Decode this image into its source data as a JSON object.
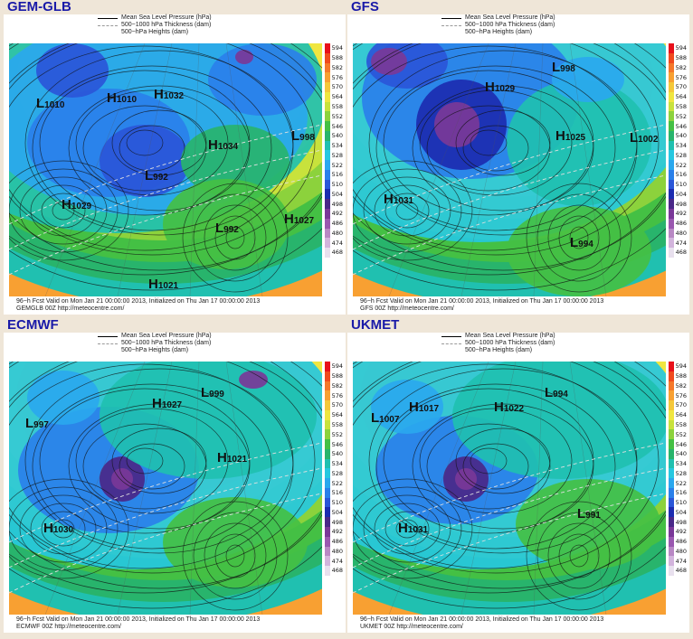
{
  "legend": {
    "mslp": "Mean Sea Level Pressure (hPa)",
    "thickness": "500−1000 hPa Thickness (dam)",
    "heights": "500−hPa Heights (dam)"
  },
  "scale": {
    "levels": [
      "594",
      "588",
      "582",
      "576",
      "570",
      "564",
      "558",
      "552",
      "546",
      "540",
      "534",
      "528",
      "522",
      "516",
      "510",
      "504",
      "498",
      "492",
      "486",
      "480",
      "474",
      "468"
    ],
    "colors": [
      "#e8101a",
      "#f04a1e",
      "#f5782a",
      "#f8a032",
      "#f5c83a",
      "#f0e640",
      "#c8e23c",
      "#8cd23c",
      "#44c044",
      "#28b46c",
      "#20c0b0",
      "#26c8e0",
      "#2aa8ee",
      "#2a80ea",
      "#2a56d8",
      "#1c2cb0",
      "#4a2888",
      "#7a3898",
      "#9a58b0",
      "#b888c4",
      "#d2b4dc",
      "#e8e0ee"
    ]
  },
  "panels": [
    {
      "model": "GEM-GLB",
      "footer1": "96−h Fcst Valid on Mon Jan 21 00:00:00 2013, Initialized on Thu Jan 17 00:00:00 2013",
      "footer2": "GEMGLB 00Z http://meteocentre.com/",
      "centers": [
        {
          "type": "L",
          "value": "1010"
        },
        {
          "type": "H",
          "value": "1010"
        },
        {
          "type": "H",
          "value": "1032"
        },
        {
          "type": "H",
          "value": "1034"
        },
        {
          "type": "L",
          "value": "998"
        },
        {
          "type": "L",
          "value": "992"
        },
        {
          "type": "H",
          "value": "1029"
        },
        {
          "type": "H",
          "value": "1027"
        },
        {
          "type": "H",
          "value": "1021"
        },
        {
          "type": "L",
          "value": "992"
        }
      ]
    },
    {
      "model": "GFS",
      "footer1": "96−h Fcst Valid on Mon Jan 21 00:00:00 2013, Initialized on Thu Jan 17 00:00:00 2013",
      "footer2": "GFS 00Z http://meteocentre.com/",
      "centers": [
        {
          "type": "H",
          "value": "1029"
        },
        {
          "type": "L",
          "value": "998"
        },
        {
          "type": "H",
          "value": "1025"
        },
        {
          "type": "L",
          "value": "1002"
        },
        {
          "type": "H",
          "value": "1031"
        },
        {
          "type": "L",
          "value": "994"
        }
      ]
    },
    {
      "model": "ECMWF",
      "footer1": "96−h Fcst Valid on Mon Jan 21 00:00:00 2013, Initialized on Thu Jan 17 00:00:00 2013",
      "footer2": "ECMWF 00Z http://meteocentre.com/",
      "centers": [
        {
          "type": "L",
          "value": "997"
        },
        {
          "type": "H",
          "value": "1027"
        },
        {
          "type": "L",
          "value": "999"
        },
        {
          "type": "H",
          "value": "1021"
        },
        {
          "type": "H",
          "value": "1030"
        }
      ]
    },
    {
      "model": "UKMET",
      "footer1": "96−h Fcst Valid on Mon Jan 21 00:00:00 2013, Initialized on Thu Jan 17 00:00:00 2013",
      "footer2": "UKMET 00Z http://meteocentre.com/",
      "centers": [
        {
          "type": "L",
          "value": "1007"
        },
        {
          "type": "H",
          "value": "1017"
        },
        {
          "type": "H",
          "value": "1022"
        },
        {
          "type": "L",
          "value": "994"
        },
        {
          "type": "H",
          "value": "1031"
        },
        {
          "type": "L",
          "value": "991"
        }
      ]
    }
  ]
}
